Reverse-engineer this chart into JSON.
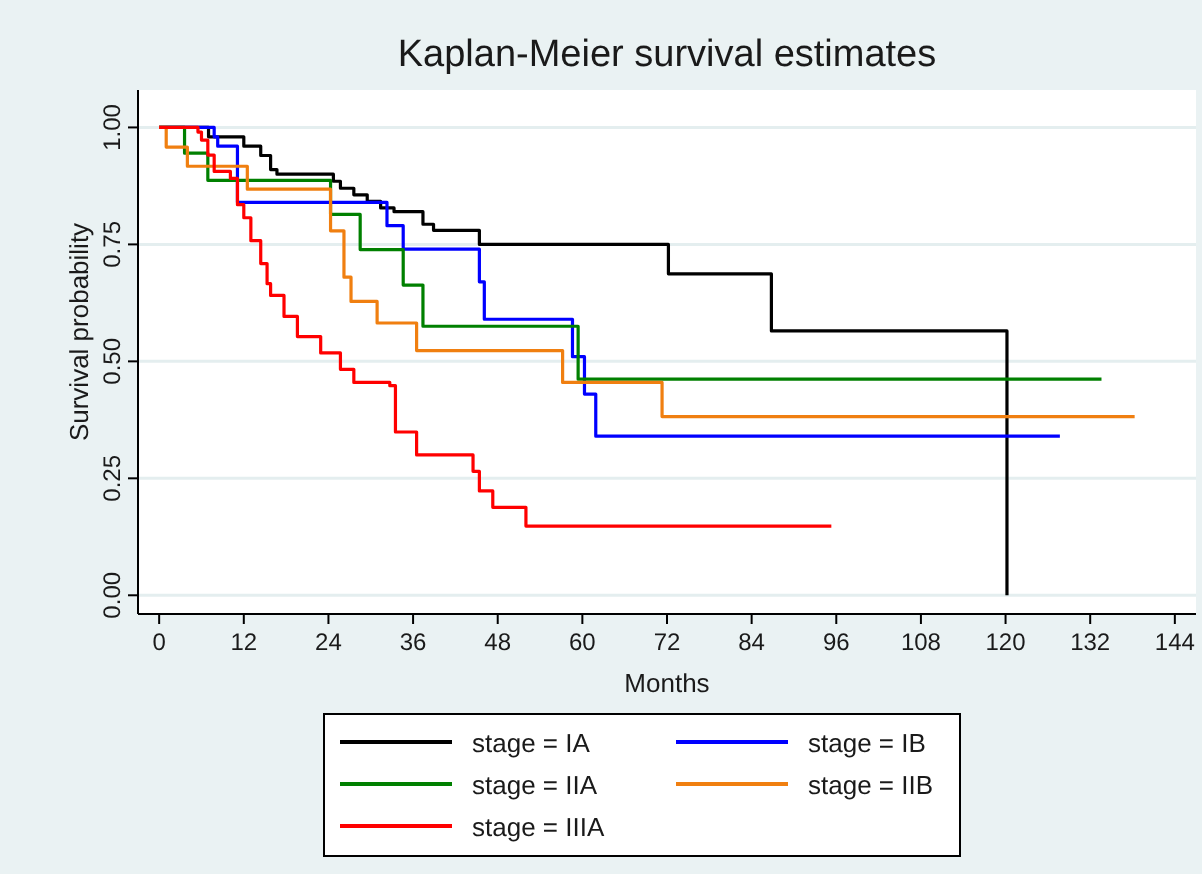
{
  "chart_data": {
    "type": "step",
    "title": "Kaplan-Meier survival estimates",
    "xlabel": "Months",
    "ylabel": "Survival probability",
    "xlim": [
      -3,
      147
    ],
    "ylim": [
      -0.04,
      1.08
    ],
    "xticks": [
      0,
      12,
      24,
      36,
      48,
      60,
      72,
      84,
      96,
      108,
      120,
      132,
      144
    ],
    "yticks": [
      {
        "value": 0,
        "label": "0.00"
      },
      {
        "value": 0.25,
        "label": "0.25"
      },
      {
        "value": 0.5,
        "label": "0.50"
      },
      {
        "value": 0.75,
        "label": "0.75"
      },
      {
        "value": 1,
        "label": "1.00"
      }
    ],
    "grid": "y",
    "legend": "bottom",
    "line_style": "solid",
    "marker": "none",
    "series": [
      {
        "name": "stage = IA",
        "color": "#000000",
        "x": [
          0,
          7,
          12,
          14.4,
          15.8,
          16.7,
          24.7,
          25.7,
          27.6,
          29.5,
          31.4,
          33.3,
          37.4,
          38.9,
          45.4,
          72.2,
          86.8,
          120.2
        ],
        "values": [
          1,
          0.98,
          0.96,
          0.94,
          0.91,
          0.9,
          0.885,
          0.87,
          0.856,
          0.842,
          0.828,
          0.82,
          0.793,
          0.78,
          0.75,
          0.687,
          0.565,
          0
        ]
      },
      {
        "name": "stage = IB",
        "color": "#0000ff",
        "x": [
          0,
          7.8,
          8.3,
          11.1,
          32.3,
          34.6,
          45.4,
          46.1,
          58.6,
          60.3,
          61.9,
          127.7
        ],
        "values": [
          1,
          0.98,
          0.96,
          0.84,
          0.79,
          0.74,
          0.67,
          0.59,
          0.51,
          0.43,
          0.34,
          0.34
        ]
      },
      {
        "name": "stage = IIA",
        "color": "#008000",
        "x": [
          0,
          3.6,
          6.9,
          24.3,
          28.5,
          34.6,
          37.4,
          59.4,
          133.6
        ],
        "values": [
          1,
          0.945,
          0.887,
          0.814,
          0.739,
          0.663,
          0.575,
          0.462,
          0.462
        ]
      },
      {
        "name": "stage = IIB",
        "color": "#f07f10",
        "x": [
          0,
          1,
          4,
          12.5,
          24.3,
          26.2,
          27.2,
          30.9,
          36.5,
          57.2,
          71.3,
          138.3
        ],
        "values": [
          1,
          0.958,
          0.917,
          0.868,
          0.779,
          0.68,
          0.628,
          0.582,
          0.523,
          0.455,
          0.382,
          0.382
        ]
      },
      {
        "name": "stage = IIIA",
        "color": "#ff0000",
        "x": [
          0,
          5.5,
          6,
          6.9,
          7.8,
          10.1,
          11.1,
          12,
          13,
          14.4,
          15.3,
          15.8,
          17.7,
          19.6,
          22.9,
          25.7,
          27.6,
          32.7,
          33.5,
          36.5,
          44.5,
          45.4,
          47.3,
          52,
          95.3
        ],
        "values": [
          1,
          0.99,
          0.973,
          0.941,
          0.906,
          0.891,
          0.835,
          0.807,
          0.758,
          0.709,
          0.666,
          0.641,
          0.596,
          0.553,
          0.518,
          0.483,
          0.455,
          0.448,
          0.349,
          0.3,
          0.265,
          0.223,
          0.188,
          0.148,
          0.148
        ]
      }
    ]
  }
}
